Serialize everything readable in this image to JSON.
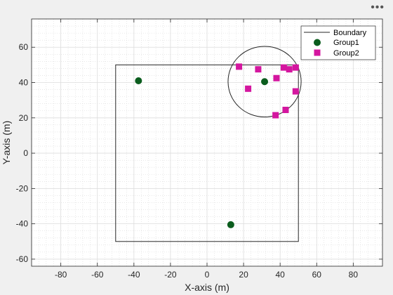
{
  "toolbar": {
    "menu_icon": "more-options-icon",
    "menu_glyph": "•••"
  },
  "chart_data": {
    "type": "scatter",
    "xlabel": "X-axis (m)",
    "ylabel": "Y-axis (m)",
    "xlim": [
      -96,
      96
    ],
    "ylim": [
      -64,
      76
    ],
    "xticks": [
      -80,
      -60,
      -40,
      -20,
      0,
      20,
      40,
      60,
      80
    ],
    "yticks": [
      -60,
      -40,
      -20,
      0,
      20,
      40,
      60
    ],
    "grid": true,
    "minor_grid": true,
    "legend_placement": "top-right",
    "boundary": {
      "name": "Boundary",
      "color": "#262626",
      "rectangle": {
        "x": [
          -50,
          50
        ],
        "y": [
          -50,
          50
        ]
      },
      "circle": {
        "cx": 31.5,
        "cy": 40.5,
        "r": 20
      }
    },
    "series": [
      {
        "name": "Group1",
        "marker": "circle",
        "color": "#0b5d1e",
        "points": [
          [
            -37.5,
            41
          ],
          [
            13,
            -40.5
          ],
          [
            31.5,
            40.5
          ]
        ]
      },
      {
        "name": "Group2",
        "marker": "square",
        "color": "#d4169f",
        "points": [
          [
            17.5,
            49
          ],
          [
            28,
            47.5
          ],
          [
            22.5,
            36.5
          ],
          [
            38,
            42.5
          ],
          [
            42,
            48.5
          ],
          [
            45,
            47.5
          ],
          [
            48.5,
            48.5
          ],
          [
            48.5,
            35
          ],
          [
            43,
            24.5
          ],
          [
            37.5,
            21.5
          ]
        ]
      }
    ]
  }
}
